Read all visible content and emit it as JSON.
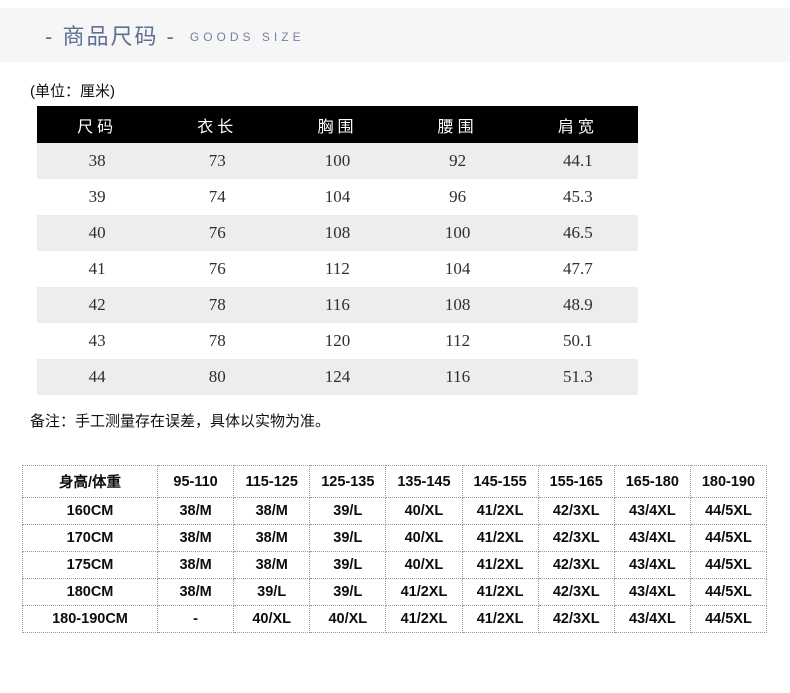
{
  "header": {
    "title_cn": "- 商品尺码 -",
    "title_en": "GOODS SIZE"
  },
  "unit_label": "(单位：厘米)",
  "size_table": {
    "headers": [
      "尺码",
      "衣长",
      "胸围",
      "腰围",
      "肩宽"
    ],
    "rows": [
      [
        "38",
        "73",
        "100",
        "92",
        "44.1"
      ],
      [
        "39",
        "74",
        "104",
        "96",
        "45.3"
      ],
      [
        "40",
        "76",
        "108",
        "100",
        "46.5"
      ],
      [
        "41",
        "76",
        "112",
        "104",
        "47.7"
      ],
      [
        "42",
        "78",
        "116",
        "108",
        "48.9"
      ],
      [
        "43",
        "78",
        "120",
        "112",
        "50.1"
      ],
      [
        "44",
        "80",
        "124",
        "116",
        "51.3"
      ]
    ]
  },
  "note": "备注：手工测量存在误差，具体以实物为准。",
  "fit_table": {
    "headers": [
      "身高/体重",
      "95-110",
      "115-125",
      "125-135",
      "135-145",
      "145-155",
      "155-165",
      "165-180",
      "180-190"
    ],
    "rows": [
      [
        "160CM",
        "38/M",
        "38/M",
        "39/L",
        "40/XL",
        "41/2XL",
        "42/3XL",
        "43/4XL",
        "44/5XL"
      ],
      [
        "170CM",
        "38/M",
        "38/M",
        "39/L",
        "40/XL",
        "41/2XL",
        "42/3XL",
        "43/4XL",
        "44/5XL"
      ],
      [
        "175CM",
        "38/M",
        "38/M",
        "39/L",
        "40/XL",
        "41/2XL",
        "42/3XL",
        "43/4XL",
        "44/5XL"
      ],
      [
        "180CM",
        "38/M",
        "39/L",
        "39/L",
        "41/2XL",
        "41/2XL",
        "42/3XL",
        "43/4XL",
        "44/5XL"
      ],
      [
        "180-190CM",
        "-",
        "40/XL",
        "40/XL",
        "41/2XL",
        "41/2XL",
        "42/3XL",
        "43/4XL",
        "44/5XL"
      ]
    ]
  },
  "colors": {
    "accent_title": "#5d7095",
    "band_bg": "#f6f6f6",
    "table_header_bg": "#000000",
    "row_alt_bg": "#ededed",
    "dotted_border": "#999999"
  }
}
